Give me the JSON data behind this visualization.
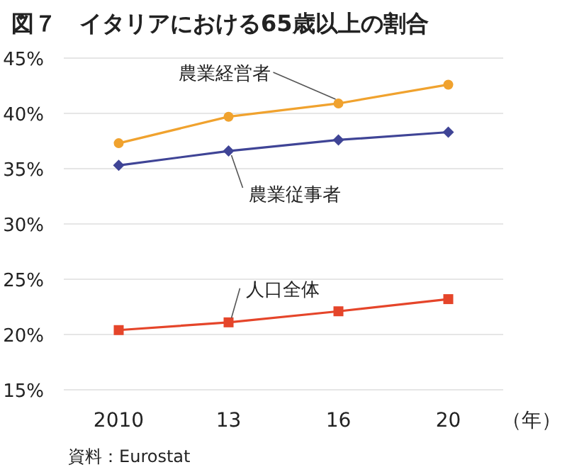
{
  "chart_data": {
    "type": "line",
    "title": "図７　イタリアにおける65歳以上の割合",
    "categories": [
      "2010",
      "13",
      "16",
      "20"
    ],
    "xlabel": "（年）",
    "series": [
      {
        "name": "農業経営者",
        "color": "#f0a22e",
        "marker": "circle",
        "values": [
          37.3,
          39.7,
          40.9,
          42.6
        ]
      },
      {
        "name": "農業従事者",
        "color": "#3f4496",
        "marker": "diamond",
        "values": [
          35.3,
          36.6,
          37.6,
          38.3
        ]
      },
      {
        "name": "人口全体",
        "color": "#e5452a",
        "marker": "square",
        "values": [
          20.4,
          21.1,
          22.1,
          23.2
        ]
      }
    ],
    "ylim": [
      15,
      45
    ],
    "yticks": [
      {
        "value": 15,
        "label": "15%"
      },
      {
        "value": 20,
        "label": "20%"
      },
      {
        "value": 25,
        "label": "25%"
      },
      {
        "value": 30,
        "label": "30%"
      },
      {
        "value": 35,
        "label": "35%"
      },
      {
        "value": 40,
        "label": "40%"
      },
      {
        "value": 45,
        "label": "45%"
      }
    ],
    "grid": "y",
    "annotations": [
      "資料：Eurostat"
    ]
  }
}
